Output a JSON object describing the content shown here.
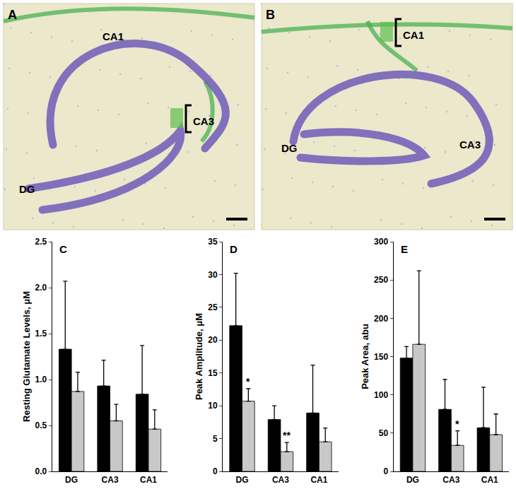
{
  "panels": [
    {
      "label": "A",
      "regions": [
        "CA1",
        "CA3",
        "DG"
      ],
      "marked": "CA3"
    },
    {
      "label": "B",
      "regions": [
        "CA1",
        "DG",
        "CA3"
      ],
      "marked": "CA1"
    }
  ],
  "chart_data": [
    {
      "type": "bar",
      "title": "C",
      "y_label": "Resting Glutamate Levels, μM",
      "categories": [
        "DG",
        "CA3",
        "CA1"
      ],
      "series": [
        {
          "color": "#000000",
          "values": [
            1.33,
            0.93,
            0.84
          ],
          "errors": [
            0.74,
            0.28,
            0.53
          ]
        },
        {
          "color": "#c8c8c8",
          "values": [
            0.87,
            0.55,
            0.46
          ],
          "errors": [
            0.21,
            0.18,
            0.21
          ]
        }
      ],
      "ylim": [
        0,
        2.5
      ],
      "yticks": [
        {
          "value": 0,
          "label": "0.0"
        },
        0.5,
        {
          "value": 1,
          "label": "1.0"
        },
        1.5,
        {
          "value": 2,
          "label": "2.0"
        },
        2.5
      ],
      "annotations": []
    },
    {
      "type": "bar",
      "title": "D",
      "y_label": "Peak Amplitude, μM",
      "categories": [
        "DG",
        "CA3",
        "CA1"
      ],
      "series": [
        {
          "color": "#000000",
          "values": [
            22.2,
            7.9,
            8.9
          ],
          "errors": [
            8.0,
            2.1,
            7.3
          ]
        },
        {
          "color": "#c8c8c8",
          "values": [
            10.7,
            3.0,
            4.5
          ],
          "errors": [
            1.9,
            1.4,
            2.1
          ]
        }
      ],
      "ylim": [
        0,
        35
      ],
      "yticks": [
        0,
        5,
        10,
        15,
        20,
        25,
        30,
        35
      ],
      "annotations": [
        {
          "category": "DG",
          "series": 1,
          "text": "*"
        },
        {
          "category": "CA3",
          "series": 1,
          "text": "**"
        }
      ]
    },
    {
      "type": "bar",
      "title": "E",
      "y_label": "Peak Area, abu",
      "categories": [
        "DG",
        "CA3",
        "CA1"
      ],
      "series": [
        {
          "color": "#000000",
          "values": [
            148,
            81,
            57
          ],
          "errors": [
            15,
            39,
            53
          ]
        },
        {
          "color": "#c8c8c8",
          "values": [
            166,
            34,
            48
          ],
          "errors": [
            96,
            19,
            27
          ]
        }
      ],
      "ylim": [
        0,
        300
      ],
      "yticks": [
        0,
        50,
        100,
        150,
        200,
        250,
        300
      ],
      "annotations": [
        {
          "category": "CA3",
          "series": 1,
          "text": "*"
        }
      ]
    }
  ]
}
